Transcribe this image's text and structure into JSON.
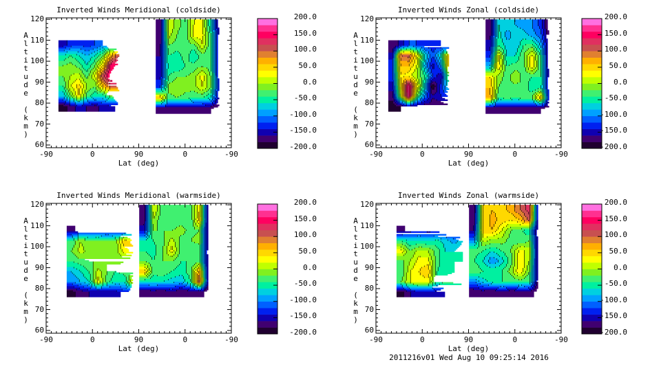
{
  "footer": "2011216v01 Wed Aug 10 09:25:14 2016",
  "colorbar": {
    "labels": [
      "200.0",
      "150.0",
      "100.0",
      "50.0",
      "0.0",
      "-50.0",
      "-100.0",
      "-150.0",
      "-200.0"
    ],
    "range": [
      -200,
      200
    ],
    "levels": 20,
    "colors": [
      "#200030",
      "#400070",
      "#1000b0",
      "#0020f0",
      "#0060ff",
      "#00a0ff",
      "#00d0e0",
      "#00f0a0",
      "#40f070",
      "#80f020",
      "#c0ff00",
      "#ffff00",
      "#ffd800",
      "#ffb000",
      "#e08030",
      "#c85050",
      "#e03060",
      "#ff0060",
      "#ff3090",
      "#ff70e0"
    ]
  },
  "chart_data": [
    {
      "type": "heatmap",
      "title": "Inverted Winds Meridional (coldside)",
      "xlabel": "Lat (deg)",
      "ylabel": "Altitude (km)",
      "x_tick_labels": [
        "-90",
        "0",
        "90",
        "0",
        "-90"
      ],
      "y_tick_labels": [
        "60",
        "70",
        "80",
        "90",
        "100",
        "110",
        "120"
      ],
      "ylim": [
        58.7,
        120.7
      ],
      "x_track_range": [
        0,
        360
      ],
      "blocks": [
        {
          "x": [
            4,
            17
          ],
          "alt": [
            79,
            109
          ],
          "values": [
            [
              -160
            ],
            [
              -170
            ],
            [
              -180
            ]
          ]
        },
        {
          "x": [
            24,
            149
          ],
          "alt": [
            76,
            110
          ],
          "values": [
            [
              -150,
              -130,
              -120,
              -130,
              -120,
              -100,
              -80,
              -100
            ],
            [
              -60,
              -40,
              -60,
              -80,
              -60,
              -20,
              60,
              120
            ],
            [
              -20,
              -10,
              -30,
              -60,
              -20,
              40,
              150,
              170
            ],
            [
              -20,
              0,
              10,
              -30,
              20,
              120,
              170,
              170
            ],
            [
              -40,
              20,
              50,
              0,
              -20,
              60,
              110,
              100
            ],
            [
              -80,
              -20,
              40,
              -30,
              -60,
              -60,
              -20,
              -40
            ],
            [
              -190,
              -170,
              -150,
              -160,
              -170,
              -150,
              -150,
              -170
            ]
          ]
        },
        {
          "x": [
            213,
            344
          ],
          "alt": [
            75,
            120
          ],
          "values": [
            [
              -180,
              20,
              -10,
              -30,
              20,
              20,
              -60,
              -170
            ],
            [
              -180,
              10,
              -20,
              -40,
              30,
              30,
              -40,
              -160
            ],
            [
              -170,
              -20,
              -30,
              -20,
              -30,
              20,
              -40,
              -160
            ],
            [
              -160,
              -40,
              -50,
              -30,
              -60,
              -30,
              -40,
              -150
            ],
            [
              -160,
              -50,
              -60,
              -40,
              -30,
              -20,
              -30,
              -150
            ],
            [
              -150,
              -40,
              -20,
              -20,
              -10,
              30,
              -20,
              -150
            ],
            [
              -120,
              -10,
              0,
              -10,
              -10,
              20,
              -20,
              -140
            ],
            [
              60,
              -30,
              -20,
              -30,
              -40,
              -40,
              -60,
              -160
            ],
            [
              -170,
              -170,
              -170,
              -170,
              -180,
              -180,
              -180,
              -190
            ]
          ]
        },
        {
          "x": [
            350,
            358
          ],
          "alt": [
            76,
            105
          ],
          "values": [
            [
              -160
            ],
            [
              -170
            ],
            [
              -180
            ]
          ]
        }
      ]
    },
    {
      "type": "heatmap",
      "title": "Inverted Winds Zonal (coldside)",
      "xlabel": "Lat (deg)",
      "ylabel": "Altitude (km)",
      "x_tick_labels": [
        "-90",
        "0",
        "90",
        "0",
        "-90"
      ],
      "y_tick_labels": [
        "60",
        "70",
        "80",
        "90",
        "100",
        "110",
        "120"
      ],
      "ylim": [
        58.7,
        120.7
      ],
      "x_track_range": [
        0,
        360
      ],
      "blocks": [
        {
          "x": [
            4,
            17
          ],
          "alt": [
            77,
            108
          ],
          "values": [
            [
              -170
            ],
            [
              -180
            ],
            [
              -170
            ]
          ]
        },
        {
          "x": [
            24,
            149
          ],
          "alt": [
            76,
            110
          ],
          "values": [
            [
              -180,
              -150,
              -120,
              -120,
              -130,
              -130,
              -140,
              -150
            ],
            [
              -150,
              100,
              110,
              40,
              -60,
              -120,
              -60,
              60
            ],
            [
              -120,
              60,
              60,
              20,
              -80,
              -150,
              -100,
              60
            ],
            [
              -130,
              40,
              30,
              0,
              -40,
              -120,
              -160,
              -20
            ],
            [
              -150,
              30,
              170,
              40,
              -60,
              -200,
              -130,
              -60
            ],
            [
              -170,
              0,
              170,
              -20,
              -100,
              -160,
              -140,
              -120
            ],
            [
              -190,
              -180,
              -160,
              -170,
              -180,
              -170,
              -180,
              -170
            ]
          ]
        },
        {
          "x": [
            213,
            344
          ],
          "alt": [
            75,
            120
          ],
          "values": [
            [
              -180,
              -60,
              -70,
              -80,
              -90,
              -100,
              -130,
              -190
            ],
            [
              -170,
              -50,
              -90,
              -70,
              -70,
              -90,
              -110,
              -180
            ],
            [
              -150,
              -40,
              -70,
              -80,
              -40,
              -30,
              -80,
              -170
            ],
            [
              -130,
              30,
              -60,
              -60,
              -20,
              30,
              -40,
              -170
            ],
            [
              -80,
              40,
              -40,
              -30,
              -30,
              40,
              -40,
              -170
            ],
            [
              40,
              -10,
              -30,
              0,
              -30,
              -40,
              -40,
              -160
            ],
            [
              60,
              -20,
              -30,
              -30,
              -20,
              -60,
              -50,
              -150
            ],
            [
              70,
              -40,
              -30,
              -40,
              -30,
              -20,
              60,
              -140
            ],
            [
              -170,
              -170,
              -170,
              -170,
              -180,
              -180,
              -180,
              -190
            ]
          ]
        },
        {
          "x": [
            350,
            358
          ],
          "alt": [
            77,
            106
          ],
          "values": [
            [
              -180
            ],
            [
              -190
            ],
            [
              -180
            ]
          ]
        }
      ]
    },
    {
      "type": "heatmap",
      "title": "Inverted Winds Meridional (warmside)",
      "xlabel": "Lat (deg)",
      "ylabel": "Altitude (km)",
      "x_tick_labels": [
        "-90",
        "0",
        "90",
        "0",
        "-90"
      ],
      "y_tick_labels": [
        "60",
        "70",
        "80",
        "90",
        "100",
        "110",
        "120"
      ],
      "ylim": [
        58.7,
        120.7
      ],
      "x_track_range": [
        0,
        360
      ],
      "blocks": [
        {
          "x": [
            32,
            35
          ],
          "alt": [
            76,
            109
          ],
          "values": [
            [
              -200
            ],
            [
              -200
            ]
          ]
        },
        {
          "x": [
            40,
            178
          ],
          "alt": [
            76,
            110
          ],
          "values": [
            [
              -170,
              -150,
              -140,
              -150,
              -150,
              -150,
              -150,
              -150
            ],
            [
              -40,
              0,
              -20,
              -10,
              -20,
              -10,
              60,
              30
            ],
            [
              -20,
              10,
              -10,
              -20,
              -10,
              -10,
              30,
              50
            ],
            [
              -40,
              -30,
              -20,
              -20,
              -20,
              -10,
              -20,
              -20
            ],
            [
              -80,
              -60,
              -40,
              10,
              -20,
              -40,
              -30,
              -30
            ],
            [
              -100,
              -80,
              -60,
              30,
              -30,
              -60,
              -60,
              40
            ],
            [
              -190,
              -170,
              -160,
              -160,
              -160,
              -150,
              -130,
              -130
            ]
          ]
        },
        {
          "x": [
            181,
            325
          ],
          "alt": [
            76,
            120
          ],
          "values": [
            [
              -180,
              20,
              -30,
              -20,
              -40,
              -30,
              40,
              -180
            ],
            [
              -170,
              0,
              -40,
              -40,
              -30,
              -40,
              50,
              -180
            ],
            [
              -150,
              -20,
              -20,
              -20,
              -10,
              -30,
              -20,
              -180
            ],
            [
              -60,
              -40,
              -30,
              10,
              -30,
              -20,
              -10,
              -180
            ],
            [
              -40,
              -50,
              -20,
              30,
              -30,
              -40,
              -40,
              -180
            ],
            [
              -20,
              -40,
              -20,
              -20,
              -40,
              -40,
              -30,
              -180
            ],
            [
              60,
              -30,
              -20,
              -40,
              -50,
              -30,
              70,
              -180
            ],
            [
              -60,
              -60,
              -60,
              -70,
              -80,
              -40,
              110,
              -180
            ],
            [
              -180,
              -170,
              -180,
              -160,
              -180,
              -170,
              -170,
              -190
            ]
          ]
        },
        {
          "x": [
            327,
            329
          ],
          "alt": [
            76,
            108
          ],
          "values": [
            [
              -200
            ],
            [
              -200
            ]
          ]
        }
      ]
    },
    {
      "type": "heatmap",
      "title": "Inverted Winds Zonal (warmside)",
      "xlabel": "Lat (deg)",
      "ylabel": "Altitude (km)",
      "x_tick_labels": [
        "-90",
        "0",
        "90",
        "0",
        "-90"
      ],
      "y_tick_labels": [
        "60",
        "70",
        "80",
        "90",
        "100",
        "110",
        "120"
      ],
      "ylim": [
        58.7,
        120.7
      ],
      "x_track_range": [
        0,
        360
      ],
      "blocks": [
        {
          "x": [
            32,
            35
          ],
          "alt": [
            76,
            109
          ],
          "values": [
            [
              -200
            ],
            [
              -200
            ]
          ]
        },
        {
          "x": [
            40,
            178
          ],
          "alt": [
            76,
            110
          ],
          "values": [
            [
              -170,
              -150,
              -140,
              -150,
              -150,
              -150,
              -150,
              -160
            ],
            [
              -40,
              -60,
              -60,
              -60,
              -50,
              -70,
              -90,
              -60
            ],
            [
              30,
              -20,
              10,
              0,
              -30,
              -60,
              -60,
              -40
            ],
            [
              -30,
              0,
              30,
              30,
              -30,
              -60,
              -40,
              -40
            ],
            [
              -40,
              20,
              40,
              60,
              -40,
              -50,
              -40,
              -30
            ],
            [
              -20,
              20,
              30,
              30,
              -40,
              -20,
              -30,
              -40
            ],
            [
              -190,
              -160,
              -150,
              -150,
              -150,
              -140,
              -130,
              -130
            ]
          ]
        },
        {
          "x": [
            181,
            325
          ],
          "alt": [
            76,
            120
          ],
          "values": [
            [
              -180,
              40,
              60,
              50,
              70,
              100,
              130,
              -180
            ],
            [
              -170,
              40,
              70,
              50,
              40,
              60,
              110,
              -180
            ],
            [
              -160,
              50,
              60,
              20,
              -20,
              -30,
              -60,
              -180
            ],
            [
              -100,
              10,
              -10,
              -10,
              -30,
              -40,
              -20,
              -180
            ],
            [
              -30,
              -40,
              -60,
              -40,
              -20,
              30,
              10,
              -180
            ],
            [
              -40,
              -60,
              -100,
              -70,
              -30,
              40,
              0,
              -180
            ],
            [
              -20,
              -40,
              -40,
              -40,
              -10,
              40,
              -20,
              -180
            ],
            [
              -100,
              -70,
              -50,
              -40,
              -40,
              -30,
              -40,
              -180
            ],
            [
              -180,
              -170,
              -180,
              -160,
              -180,
              -170,
              -170,
              -190
            ]
          ]
        },
        {
          "x": [
            327,
            329
          ],
          "alt": [
            76,
            108
          ],
          "values": [
            [
              -200
            ],
            [
              -200
            ]
          ]
        }
      ]
    }
  ]
}
